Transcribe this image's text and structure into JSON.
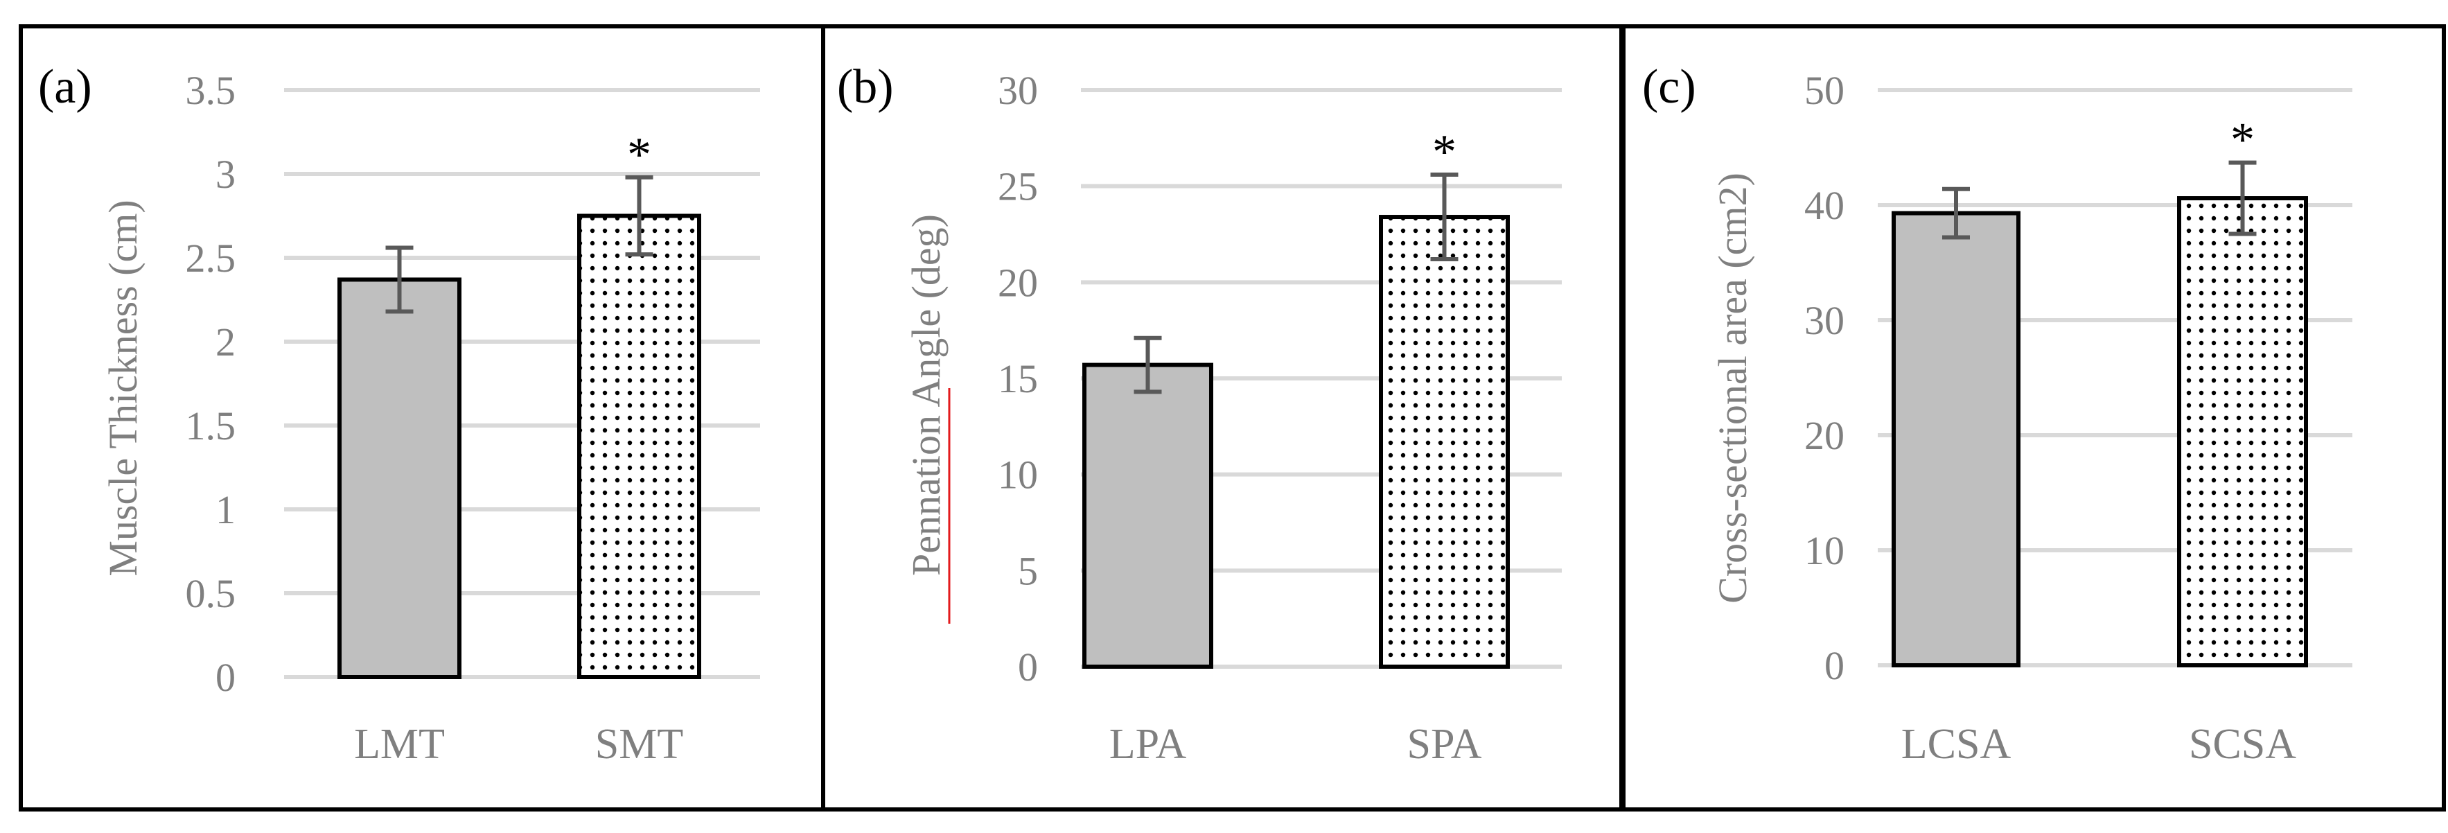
{
  "figure": {
    "colors": {
      "gridline": "#d9d9d9",
      "bar_solid": "#bfbfbf",
      "bar_dotted_bg": "#ffffff",
      "dot": "#000000",
      "bar_outline": "#000000",
      "error_bar": "#595959",
      "text": "#7f7f7f",
      "panel_border": "#000000",
      "underline": "#e31a1c"
    }
  },
  "chart_data": [
    {
      "type": "bar",
      "panel_label": "(a)",
      "ylabel": "Muscle Thickness (cm)",
      "ylim": [
        0,
        3.5
      ],
      "yticks": [
        "0",
        "0.5",
        "1",
        "1.5",
        "2",
        "2.5",
        "3",
        "3.5"
      ],
      "ytick_values": [
        0,
        0.5,
        1,
        1.5,
        2,
        2.5,
        3,
        3.5
      ],
      "categories": [
        "LMT",
        "SMT"
      ],
      "values": [
        2.37,
        2.75
      ],
      "errors": [
        0.19,
        0.23
      ],
      "patterns": [
        "solid",
        "dotted"
      ],
      "significance": [
        "",
        "*"
      ],
      "grid": true
    },
    {
      "type": "bar",
      "panel_label": "(b)",
      "ylabel": "Pennation Angle (deg)",
      "ylim": [
        0,
        30
      ],
      "yticks": [
        "0",
        "5",
        "10",
        "15",
        "20",
        "25",
        "30"
      ],
      "ytick_values": [
        0,
        5,
        10,
        15,
        20,
        25,
        30
      ],
      "categories": [
        "LPA",
        "SPA"
      ],
      "values": [
        15.7,
        23.4
      ],
      "errors": [
        1.4,
        2.2
      ],
      "patterns": [
        "solid",
        "dotted"
      ],
      "significance": [
        "",
        "*"
      ],
      "grid": true
    },
    {
      "type": "bar",
      "panel_label": "(c)",
      "ylabel": "Cross-sectional area (cm2)",
      "ylim": [
        0,
        50
      ],
      "yticks": [
        "0",
        "10",
        "20",
        "30",
        "40",
        "50"
      ],
      "ytick_values": [
        0,
        10,
        20,
        30,
        40,
        50
      ],
      "categories": [
        "LCSA",
        "SCSA"
      ],
      "values": [
        39.3,
        40.6
      ],
      "errors": [
        2.1,
        3.1
      ],
      "patterns": [
        "solid",
        "dotted"
      ],
      "significance": [
        "",
        "*"
      ],
      "grid": true
    }
  ]
}
